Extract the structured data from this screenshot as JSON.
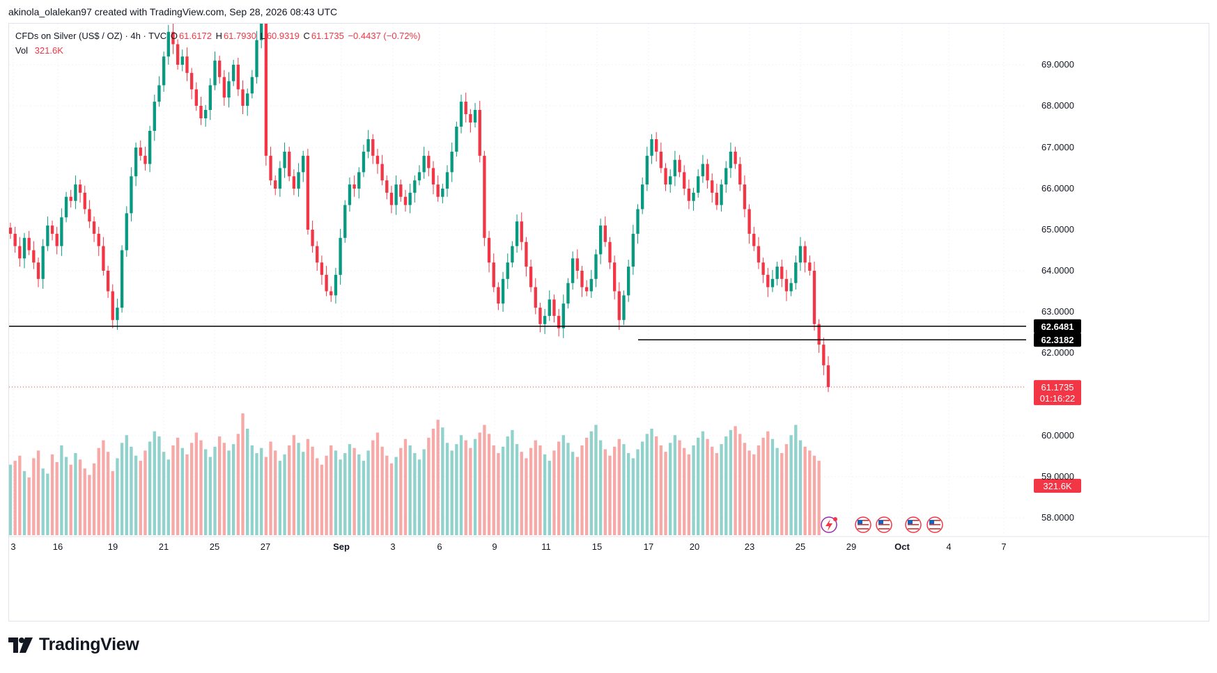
{
  "header": {
    "attribution": "akinola_olalekan97 created with TradingView.com, Sep 28, 2026 08:43 UTC"
  },
  "legend": {
    "symbol": "CFDs on Silver (US$ / OZ) · 4h · TVC",
    "open_label": "O",
    "open": "61.6172",
    "high_label": "H",
    "high": "61.7930",
    "low_label": "L",
    "low": "60.9319",
    "close_label": "C",
    "close": "61.1735",
    "change": "−0.4437 (−0.72%)",
    "vol_label": "Vol",
    "vol": "321.6K"
  },
  "brand": {
    "name": "TradingView"
  },
  "colors": {
    "up": "#089981",
    "down": "#f23645",
    "vol_up": "#92d2cc",
    "vol_down": "#f7a9a7",
    "grid": "#f0f3fa",
    "axis_text": "#131722"
  },
  "icons": [
    "lightning-icon",
    "us-flag-icon"
  ],
  "chart_data": {
    "type": "candlestick",
    "title": "CFDs on Silver (US$ / OZ) · 4h · TVC",
    "xlabel": "",
    "ylabel": "",
    "ylim": [
      57.6,
      70.2
    ],
    "y_ticks": [
      "69.0000",
      "68.0000",
      "67.0000",
      "66.0000",
      "65.0000",
      "64.0000",
      "63.0000",
      "62.0000",
      "60.0000",
      "59.0000",
      "58.0000"
    ],
    "x_ticks": [
      "3",
      "16",
      "19",
      "21",
      "25",
      "27",
      "Sep",
      "3",
      "6",
      "9",
      "11",
      "15",
      "17",
      "20",
      "23",
      "25",
      "29",
      "Oct",
      "4",
      "7"
    ],
    "grid": true,
    "horizontal_levels": [
      {
        "value": 62.6481,
        "label": "62.6481"
      },
      {
        "value": 62.3182,
        "label": "62.3182"
      }
    ],
    "last_price": {
      "value": 61.1735,
      "label": "61.1735",
      "countdown": "01:16:22"
    },
    "volume_label": "321.6K",
    "close_path": [
      64.9,
      64.6,
      64.3,
      64.8,
      64.5,
      64.2,
      63.8,
      64.6,
      65.1,
      64.9,
      64.6,
      65.3,
      65.8,
      65.7,
      66.1,
      65.9,
      65.5,
      65.2,
      64.9,
      64.6,
      64.0,
      63.5,
      62.8,
      63.1,
      64.5,
      65.4,
      66.3,
      67.0,
      66.8,
      66.6,
      67.4,
      68.1,
      68.5,
      69.2,
      69.8,
      69.5,
      69.0,
      69.2,
      68.8,
      68.4,
      68.0,
      67.7,
      67.9,
      68.5,
      69.1,
      68.7,
      68.2,
      68.6,
      69.0,
      68.4,
      68.0,
      68.3,
      68.7,
      69.6,
      70.0,
      66.8,
      66.2,
      66.0,
      66.5,
      66.9,
      66.3,
      66.0,
      66.4,
      66.8,
      65.0,
      64.6,
      64.2,
      63.9,
      63.5,
      63.4,
      63.9,
      64.8,
      65.6,
      66.1,
      66.0,
      66.4,
      66.9,
      67.2,
      66.8,
      66.6,
      66.2,
      65.9,
      65.6,
      66.1,
      65.8,
      65.6,
      65.9,
      66.2,
      66.4,
      66.8,
      66.5,
      66.1,
      65.8,
      66.0,
      66.4,
      66.9,
      67.5,
      68.1,
      67.8,
      67.6,
      67.9,
      66.8,
      64.8,
      64.2,
      63.6,
      63.2,
      63.8,
      64.2,
      64.6,
      65.2,
      64.7,
      64.1,
      63.6,
      63.1,
      62.7,
      62.9,
      63.3,
      62.9,
      62.6,
      63.2,
      63.7,
      64.3,
      64.0,
      63.6,
      63.5,
      63.8,
      64.4,
      65.1,
      64.7,
      64.2,
      63.5,
      62.8,
      63.4,
      64.1,
      64.9,
      65.5,
      66.1,
      66.8,
      67.2,
      66.9,
      66.5,
      66.1,
      66.3,
      66.7,
      66.4,
      66.0,
      65.7,
      65.9,
      66.3,
      66.6,
      66.2,
      65.9,
      65.6,
      66.1,
      66.5,
      66.9,
      66.6,
      66.1,
      65.5,
      64.9,
      64.6,
      64.2,
      63.9,
      63.6,
      63.8,
      64.1,
      63.8,
      63.5,
      63.7,
      64.2,
      64.6,
      64.2,
      64.0,
      62.7,
      62.2,
      61.7,
      61.1735
    ],
    "volume_levels": [
      0.55,
      0.58,
      0.62,
      0.5,
      0.45,
      0.6,
      0.66,
      0.52,
      0.48,
      0.63,
      0.57,
      0.7,
      0.61,
      0.55,
      0.64,
      0.59,
      0.52,
      0.47,
      0.56,
      0.68,
      0.74,
      0.65,
      0.5,
      0.6,
      0.72,
      0.78,
      0.69,
      0.62,
      0.58,
      0.66,
      0.73,
      0.81,
      0.77,
      0.65,
      0.59,
      0.7,
      0.76,
      0.68,
      0.63,
      0.72,
      0.8,
      0.74,
      0.67,
      0.61,
      0.69,
      0.77,
      0.72,
      0.66,
      0.71,
      0.79,
      0.95,
      0.83,
      0.7,
      0.64,
      0.68,
      0.61,
      0.73,
      0.66,
      0.58,
      0.63,
      0.7,
      0.78,
      0.72,
      0.65,
      0.75,
      0.69,
      0.6,
      0.55,
      0.62,
      0.7,
      0.66,
      0.59,
      0.64,
      0.71,
      0.68,
      0.63,
      0.58,
      0.66,
      0.74,
      0.8,
      0.69,
      0.62,
      0.56,
      0.61,
      0.68,
      0.75,
      0.7,
      0.64,
      0.59,
      0.67,
      0.76,
      0.83,
      0.9,
      0.84,
      0.72,
      0.66,
      0.71,
      0.78,
      0.74,
      0.68,
      0.75,
      0.8,
      0.86,
      0.79,
      0.7,
      0.64,
      0.69,
      0.77,
      0.82,
      0.71,
      0.65,
      0.6,
      0.68,
      0.74,
      0.7,
      0.63,
      0.58,
      0.66,
      0.73,
      0.78,
      0.72,
      0.65,
      0.61,
      0.7,
      0.76,
      0.81,
      0.86,
      0.74,
      0.67,
      0.62,
      0.69,
      0.75,
      0.71,
      0.64,
      0.6,
      0.67,
      0.73,
      0.79,
      0.83,
      0.77,
      0.7,
      0.65,
      0.72,
      0.78,
      0.74,
      0.68,
      0.63,
      0.7,
      0.76,
      0.81,
      0.75,
      0.69,
      0.64,
      0.71,
      0.77,
      0.82,
      0.85,
      0.79,
      0.72,
      0.66,
      0.63,
      0.7,
      0.76,
      0.81,
      0.75,
      0.68,
      0.64,
      0.71,
      0.78,
      0.86,
      0.74,
      0.69,
      0.66,
      0.62,
      0.58
    ]
  }
}
